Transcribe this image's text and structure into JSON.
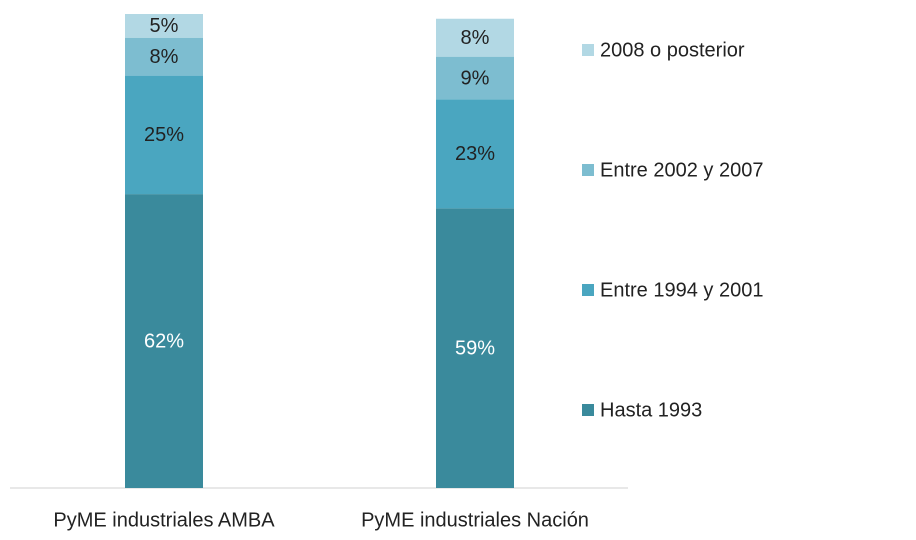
{
  "chart_data": {
    "type": "stacked_bar",
    "categories": [
      "PyME industriales AMBA",
      "PyME industriales Nación"
    ],
    "series": [
      {
        "name": "Hasta 1993",
        "color": "#3a8a9c",
        "values": [
          62,
          59
        ],
        "value_labels": [
          "62%",
          "59%"
        ]
      },
      {
        "name": "Entre 1994 y 2001",
        "color": "#4aa6c0",
        "values": [
          25,
          23
        ],
        "value_labels": [
          "25%",
          "23%"
        ]
      },
      {
        "name": "Entre 2002 y 2007",
        "color": "#7dbdd0",
        "values": [
          8,
          9
        ],
        "value_labels": [
          "8%",
          "9%"
        ]
      },
      {
        "name": "2008 o posterior",
        "color": "#b2d8e4",
        "values": [
          5,
          8
        ],
        "value_labels": [
          "5%",
          "8%"
        ]
      }
    ],
    "ylim": [
      0,
      100
    ],
    "legend": "right"
  }
}
